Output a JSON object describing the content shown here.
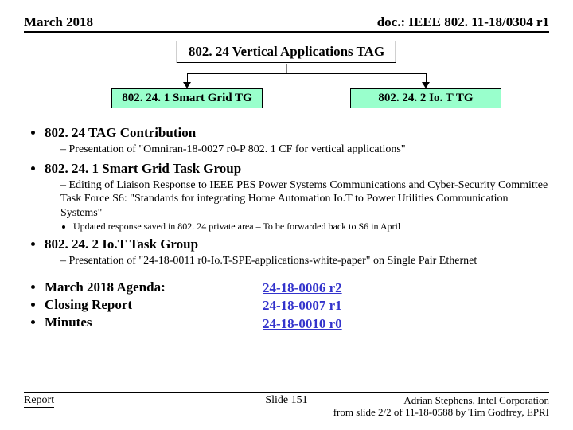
{
  "header": {
    "date": "March 2018",
    "docref": "doc.: IEEE 802. 11-18/0304 r1"
  },
  "diagram": {
    "parent": "802. 24 Vertical Applications TAG",
    "left_child": "802. 24. 1 Smart Grid TG",
    "right_child": "802. 24. 2 Io. T TG",
    "box_fill": "#99ffcc",
    "box_border": "#000000"
  },
  "bullets": {
    "b1": "802. 24 TAG Contribution",
    "b1_sub1": "Presentation of \"Omniran-18-0027 r0-P 802. 1 CF for vertical applications\"",
    "b2": "802. 24. 1 Smart Grid Task Group",
    "b2_sub1": "Editing of Liaison Response to IEEE PES Power Systems Communications and Cyber-Security Committee Task Force S6: \"Standards for integrating Home Automation Io.T to Power Utilities Communication Systems\"",
    "b2_sub1_pt": "Updated response saved in 802. 24 private area – To be forwarded back to S6 in April",
    "b3": "802. 24. 2 Io.T Task Group",
    "b3_sub1": "Presentation of \"24-18-0011 r0-Io.T-SPE-applications-white-paper\" on Single Pair Ethernet"
  },
  "agenda": {
    "a1": "March 2018 Agenda:",
    "a2": "Closing Report",
    "a3": "Minutes",
    "link1": "24-18-0006 r2",
    "link2": "24-18-0007 r1",
    "link3": "24-18-0010 r0",
    "link_color": "#3333cc"
  },
  "footer": {
    "left": "Report",
    "center": "Slide 151",
    "right1": "Adrian Stephens, Intel Corporation",
    "right2": "from slide 2/2 of 11-18-0588 by Tim Godfrey, EPRI"
  }
}
